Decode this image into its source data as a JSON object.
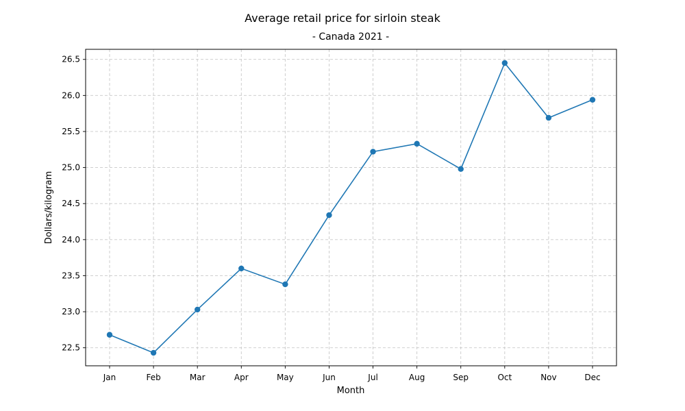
{
  "chart_data": {
    "type": "line",
    "title": "Average retail price for sirloin steak",
    "subtitle": "- Canada 2021 -",
    "xlabel": "Month",
    "ylabel": "Dollars/kilogram",
    "categories": [
      "Jan",
      "Feb",
      "Mar",
      "Apr",
      "May",
      "Jun",
      "Jul",
      "Aug",
      "Sep",
      "Oct",
      "Nov",
      "Dec"
    ],
    "series": [
      {
        "values": [
          22.68,
          22.43,
          23.03,
          23.6,
          23.38,
          24.34,
          25.22,
          25.33,
          24.98,
          26.45,
          25.69,
          25.94
        ]
      }
    ],
    "y_ticks": [
      "22.5",
      "23.0",
      "23.5",
      "24.0",
      "24.5",
      "25.0",
      "25.5",
      "26.0",
      "26.5"
    ],
    "ylim": [
      22.25,
      26.64
    ],
    "grid": true,
    "marker": "circle",
    "colors": {
      "series": "#1f77b4",
      "grid": "#c8c8c8"
    }
  }
}
